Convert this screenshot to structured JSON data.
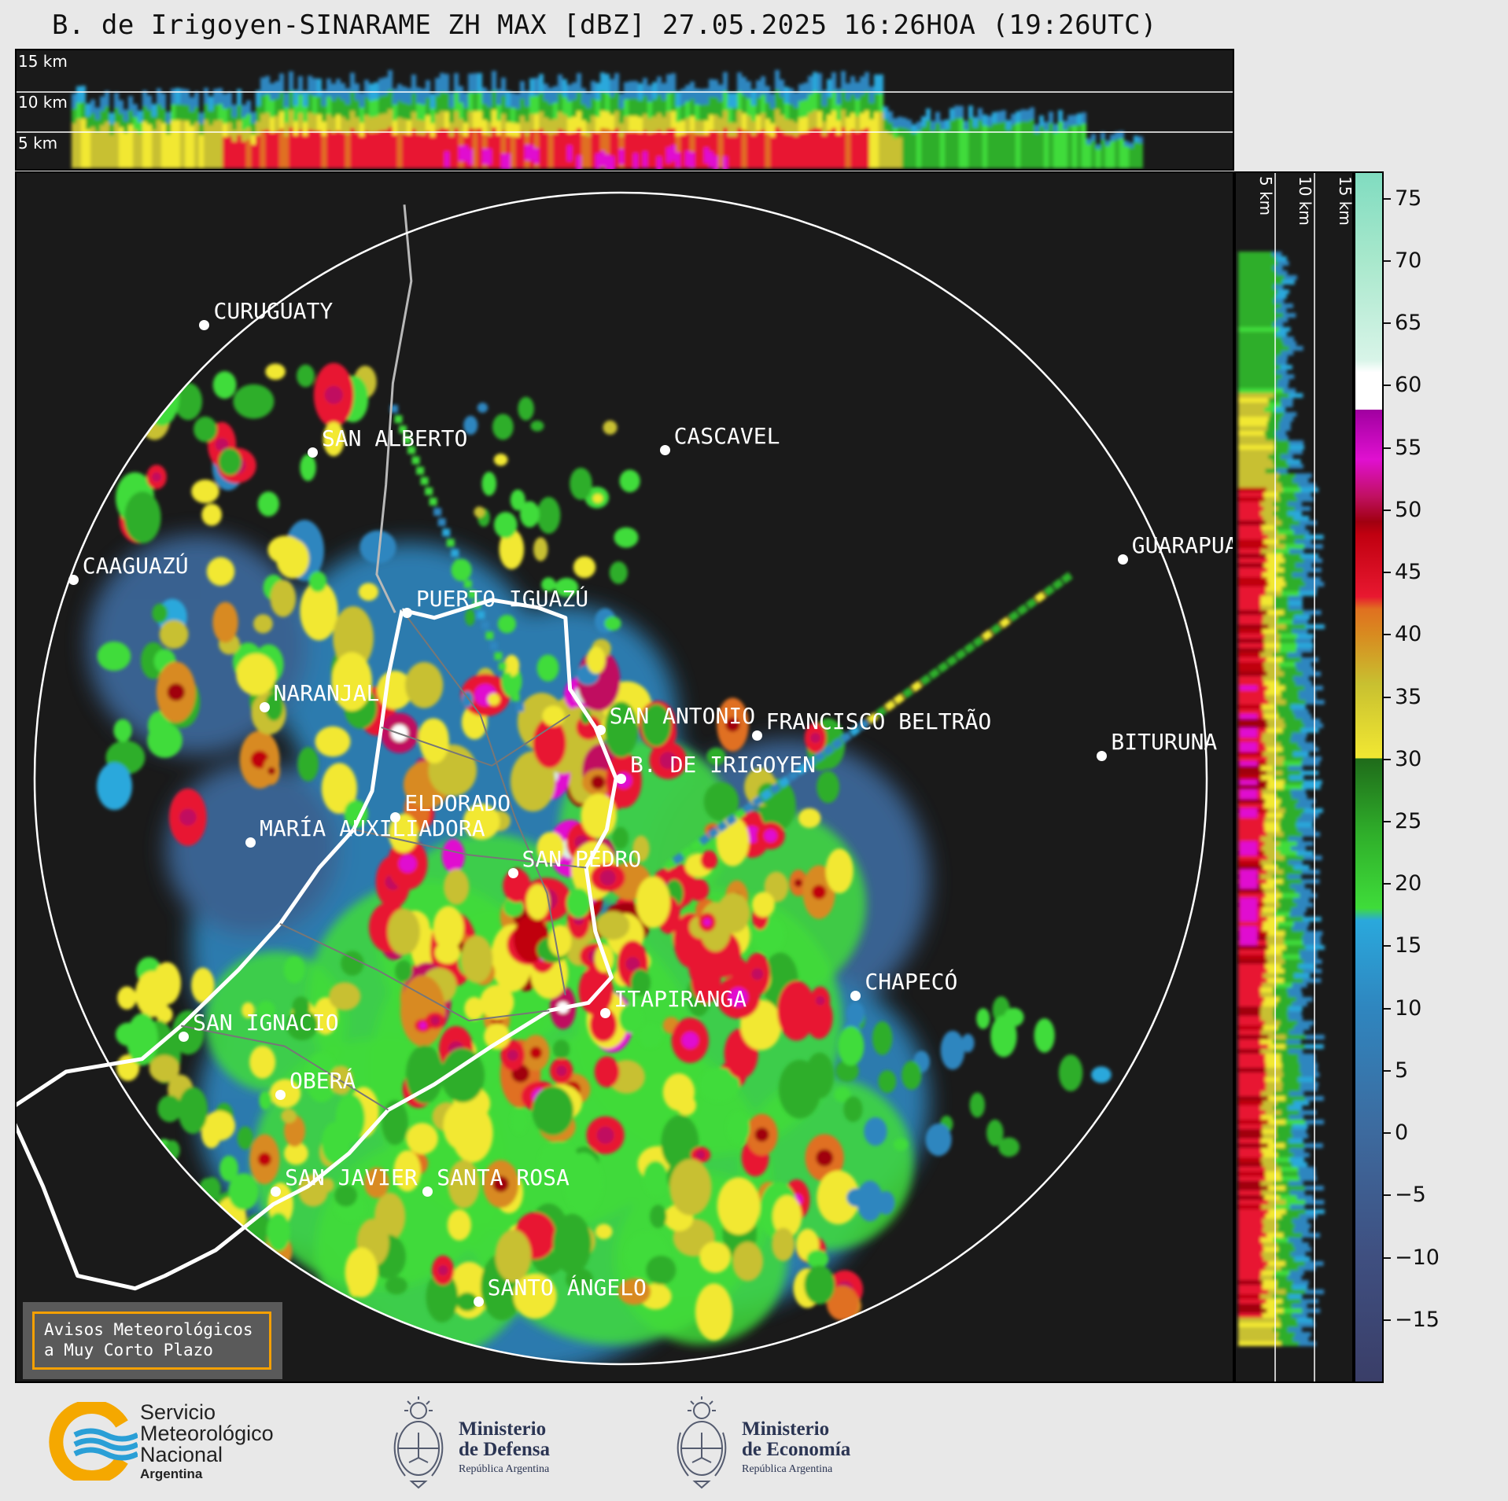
{
  "title": "B. de Irigoyen-SINARAME ZH MAX [dBZ] 27.05.2025 16:26HOA (19:26UTC)",
  "top_panel": {
    "height_labels": [
      "15 km",
      "10 km",
      "5 km"
    ]
  },
  "right_panel": {
    "height_labels": [
      "5 km",
      "10 km",
      "15 km"
    ]
  },
  "colorbar": {
    "unit": "dBZ",
    "ticks": [
      "75",
      "70",
      "65",
      "60",
      "55",
      "50",
      "45",
      "40",
      "35",
      "30",
      "25",
      "20",
      "15",
      "10",
      "5",
      "0",
      "−5",
      "−10",
      "−15"
    ],
    "stops": [
      {
        "v": -20,
        "c": "#3a3e68"
      },
      {
        "v": -10,
        "c": "#3f4f80"
      },
      {
        "v": 0,
        "c": "#3d6a9e"
      },
      {
        "v": 10,
        "c": "#2f86bf"
      },
      {
        "v": 17,
        "c": "#2aa8dc"
      },
      {
        "v": 18,
        "c": "#3fdc3a"
      },
      {
        "v": 24,
        "c": "#2fae2a"
      },
      {
        "v": 30,
        "c": "#1f6b1a"
      },
      {
        "v": 30.01,
        "c": "#f2e832"
      },
      {
        "v": 36,
        "c": "#c8c030"
      },
      {
        "v": 40,
        "c": "#d88a20"
      },
      {
        "v": 42,
        "c": "#e07020"
      },
      {
        "v": 43,
        "c": "#e81830"
      },
      {
        "v": 48,
        "c": "#c00010"
      },
      {
        "v": 49,
        "c": "#a00010"
      },
      {
        "v": 51,
        "c": "#c01060"
      },
      {
        "v": 54,
        "c": "#e010d0"
      },
      {
        "v": 58,
        "c": "#a000a0"
      },
      {
        "v": 58.01,
        "c": "#ffffff"
      },
      {
        "v": 61,
        "c": "#ffffff"
      },
      {
        "v": 62,
        "c": "#d8f4e8"
      },
      {
        "v": 70,
        "c": "#a8e8cc"
      },
      {
        "v": 77,
        "c": "#80dcc0"
      }
    ]
  },
  "map": {
    "radar_site": "B. DE IRIGOYEN",
    "cities": [
      {
        "name": "CURUGUATY",
        "lon": -55.45,
        "lat": -24.47
      },
      {
        "name": "SAN ALBERTO",
        "lon": -54.98,
        "lat": -24.97
      },
      {
        "name": "CASCAVEL",
        "lon": -53.45,
        "lat": -24.96
      },
      {
        "name": "CAAGUAZÚ",
        "lon": -56.02,
        "lat": -25.47
      },
      {
        "name": "GUARAPUAVA",
        "lon": -51.46,
        "lat": -25.39
      },
      {
        "name": "PUERTO IGUAZÚ",
        "lon": -54.57,
        "lat": -25.6
      },
      {
        "name": "NARANJAL",
        "lon": -55.19,
        "lat": -25.97
      },
      {
        "name": "SAN ANTONIO",
        "lon": -53.73,
        "lat": -26.06
      },
      {
        "name": "FRANCISCO BELTRÃO",
        "lon": -53.05,
        "lat": -26.08
      },
      {
        "name": "BITURUNA",
        "lon": -51.55,
        "lat": -26.16
      },
      {
        "name": "B. DE IRIGOYEN",
        "lon": -53.64,
        "lat": -26.25
      },
      {
        "name": "ELDORADO",
        "lon": -54.62,
        "lat": -26.4
      },
      {
        "name": "MARÍA AUXILIADORA",
        "lon": -55.25,
        "lat": -26.5
      },
      {
        "name": "SAN PEDRO",
        "lon": -54.11,
        "lat": -26.62
      },
      {
        "name": "CHAPECÓ",
        "lon": -52.62,
        "lat": -27.1
      },
      {
        "name": "ITAPIRANGA",
        "lon": -53.71,
        "lat": -27.17
      },
      {
        "name": "SAN IGNACIO",
        "lon": -55.54,
        "lat": -27.26
      },
      {
        "name": "OBERÁ",
        "lon": -55.12,
        "lat": -27.49
      },
      {
        "name": "SAN JAVIER",
        "lon": -55.14,
        "lat": -27.87
      },
      {
        "name": "SANTA ROSA",
        "lon": -54.48,
        "lat": -27.87
      },
      {
        "name": "SANTO ÁNGELO",
        "lon": -54.26,
        "lat": -28.3
      }
    ]
  },
  "warning_box": {
    "line1": "Avisos Meteorológicos",
    "line2": "a Muy Corto Plazo"
  },
  "logos": {
    "smn": {
      "line1": "Servicio",
      "line2": "Meteorológico",
      "line3": "Nacional",
      "line4": "Argentina",
      "colors": [
        "#f5a800",
        "#2a9fd6"
      ]
    },
    "defensa": {
      "line1": "Ministerio",
      "line2": "de Defensa",
      "line3": "República Argentina"
    },
    "economia": {
      "line1": "Ministerio",
      "line2": "de Economía",
      "line3": "República Argentina"
    }
  }
}
